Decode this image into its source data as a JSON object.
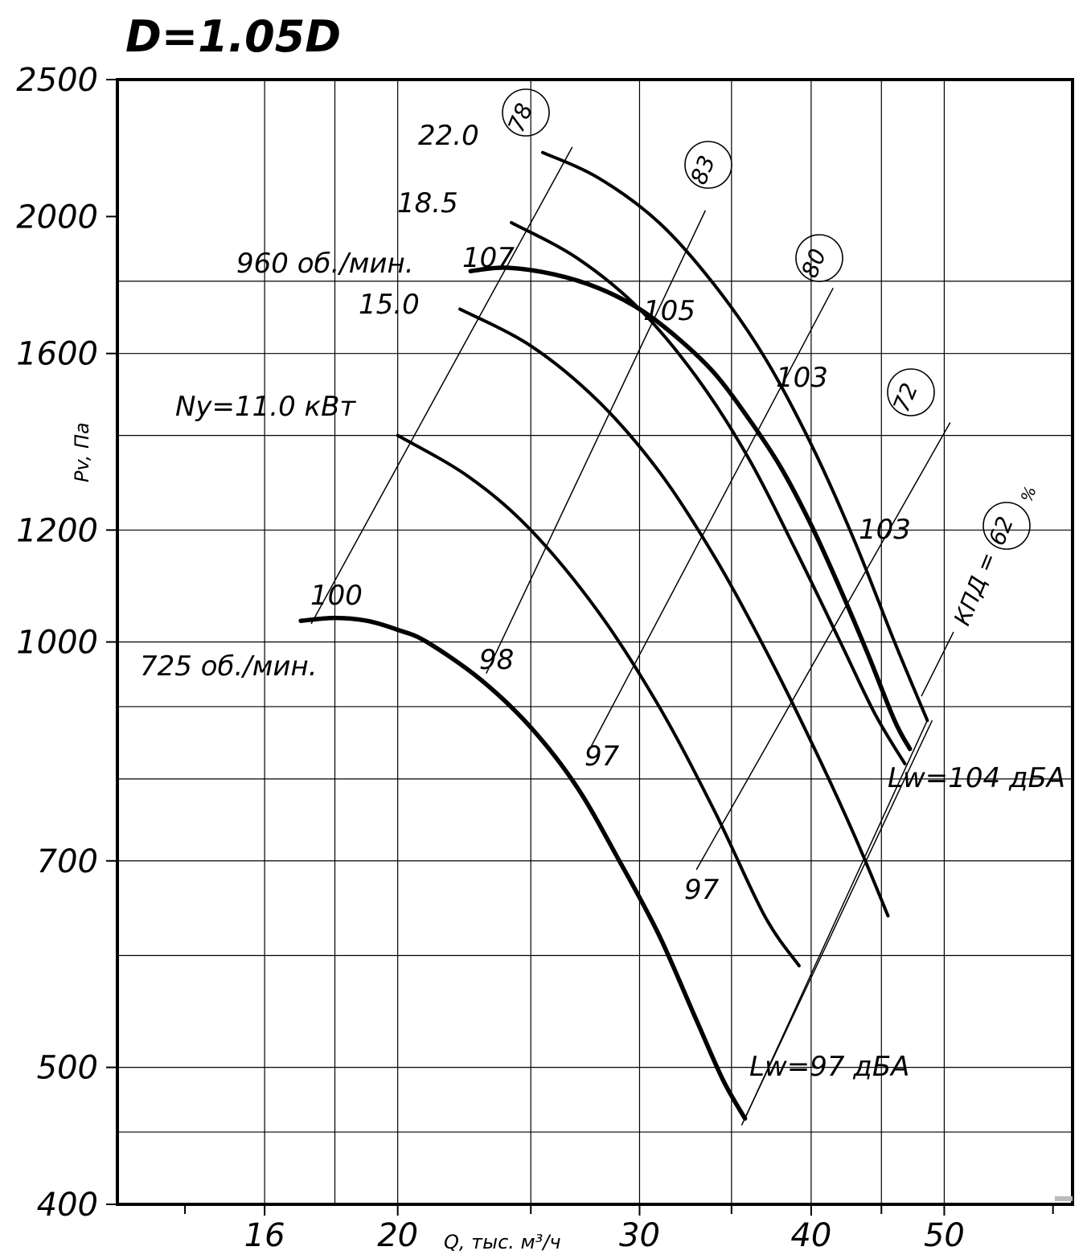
{
  "chart_data": {
    "type": "line",
    "title": "D=1.05D",
    "xlabel": "Q, тыс. м³/ч",
    "ylabel": "Pv, Па",
    "xscale": "log",
    "yscale": "log",
    "xlim": [
      12.5,
      62
    ],
    "ylim": [
      400,
      2500
    ],
    "x_ticks": [
      {
        "value": 16,
        "label": "16"
      },
      {
        "value": 20,
        "label": "20"
      },
      {
        "value": 30,
        "label": "30"
      },
      {
        "value": 40,
        "label": "40"
      },
      {
        "value": 50,
        "label": "50"
      }
    ],
    "x_minor_ticks": [
      14,
      25,
      35,
      45,
      60
    ],
    "y_ticks": [
      {
        "value": 2500,
        "label": "2500"
      },
      {
        "value": 2000,
        "label": "2000"
      },
      {
        "value": 1600,
        "label": "1600"
      },
      {
        "value": 1200,
        "label": "1200"
      },
      {
        "value": 1000,
        "label": "1000"
      },
      {
        "value": 700,
        "label": "700"
      },
      {
        "value": 500,
        "label": "500"
      },
      {
        "value": 400,
        "label": "400"
      }
    ],
    "gridlines": {
      "horizontal": [
        1800,
        1600,
        1400,
        1200,
        1000,
        900,
        800,
        700,
        600,
        500,
        450
      ],
      "vertical": [
        16,
        18,
        20,
        25,
        30,
        35,
        40,
        45,
        50
      ]
    },
    "series": [
      {
        "name": "22.0",
        "x": [
          25.5,
          28,
          31,
          34,
          37,
          40,
          43,
          46,
          48.6
        ],
        "y": [
          2220,
          2130,
          1980,
          1790,
          1590,
          1380,
          1180,
          1000,
          880
        ]
      },
      {
        "name": "18.5",
        "x": [
          24.2,
          27,
          30,
          33,
          36,
          39,
          42,
          44.5,
          46.8
        ],
        "y": [
          1980,
          1870,
          1720,
          1540,
          1350,
          1160,
          1000,
          890,
          820
        ]
      },
      {
        "name": "960 об./мин.",
        "x": [
          22.6,
          24,
          26,
          28,
          30,
          32,
          34,
          36,
          38,
          40,
          42,
          44,
          46,
          47.2
        ],
        "y": [
          1830,
          1840,
          1820,
          1780,
          1720,
          1640,
          1550,
          1440,
          1330,
          1210,
          1090,
          980,
          880,
          840
        ]
      },
      {
        "name": "15.0",
        "x": [
          22.2,
          25,
          28,
          31,
          34,
          37,
          40,
          43,
          45.5
        ],
        "y": [
          1720,
          1620,
          1480,
          1320,
          1150,
          990,
          850,
          730,
          640
        ]
      },
      {
        "name": "Ny=11.0 кВт",
        "x": [
          20,
          22.5,
          25,
          28,
          31,
          34,
          37,
          39.2
        ],
        "y": [
          1400,
          1310,
          1200,
          1050,
          900,
          760,
          640,
          590
        ]
      },
      {
        "name": "725 об./мин.",
        "x": [
          17,
          18,
          19,
          20,
          21,
          23,
          25,
          27,
          29,
          31,
          33,
          34.5,
          35.8
        ],
        "y": [
          1035,
          1040,
          1035,
          1020,
          1000,
          940,
          870,
          790,
          700,
          620,
          540,
          490,
          460
        ]
      }
    ],
    "speed_labels": [
      "960 об./мин.",
      "725 об./мин."
    ],
    "power_labels": [
      "22.0",
      "18.5",
      "15.0",
      "Ny=11.0 кВт"
    ],
    "efficiency_lines": [
      {
        "label": "78",
        "x": [
          17.3,
          26.8
        ],
        "y": [
          1030,
          2240
        ]
      },
      {
        "label": "83",
        "x": [
          23.2,
          33.5
        ],
        "y": [
          950,
          2020
        ]
      },
      {
        "label": "80",
        "x": [
          27.6,
          41.5
        ],
        "y": [
          840,
          1780
        ]
      },
      {
        "label": "72",
        "x": [
          33,
          50.5
        ],
        "y": [
          690,
          1430
        ]
      },
      {
        "label": "62",
        "x": [
          35.6,
          49
        ],
        "y": [
          455,
          880
        ]
      }
    ],
    "efficiency_label_prefix": "КПД =",
    "efficiency_unit": "%",
    "sound_labels": [
      "107",
      "105",
      "103",
      "103",
      "100",
      "98",
      "97",
      "97",
      "Lw=104 дБА",
      "Lw=97 дБА"
    ]
  },
  "icons": {
    "small_mark": "tiny-stamp"
  }
}
